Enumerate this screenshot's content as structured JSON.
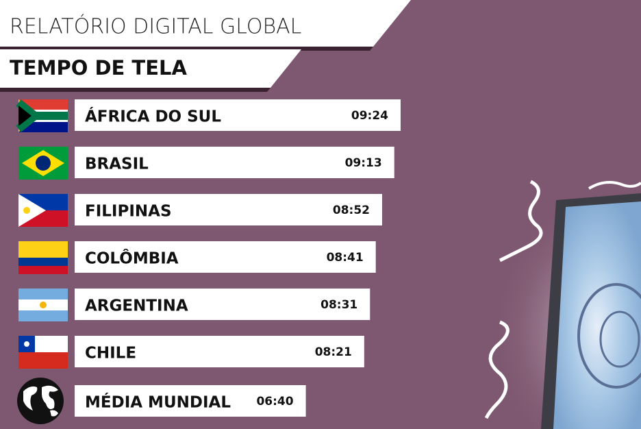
{
  "chart_data": {
    "type": "bar",
    "title": "RELATÓRIO DIGITAL GLOBAL",
    "subtitle": "TEMPO DE TELA",
    "categories": [
      "ÁFRICA DO SUL",
      "BRASIL",
      "FILIPINAS",
      "COLÔMBIA",
      "ARGENTINA",
      "CHILE",
      "MÉDIA MUNDIAL"
    ],
    "values": [
      564,
      553,
      532,
      521,
      511,
      501,
      400
    ],
    "value_labels": [
      "09:24",
      "09:13",
      "08:52",
      "08:41",
      "08:31",
      "08:21",
      "06:40"
    ],
    "color": "#ffffff"
  }
}
